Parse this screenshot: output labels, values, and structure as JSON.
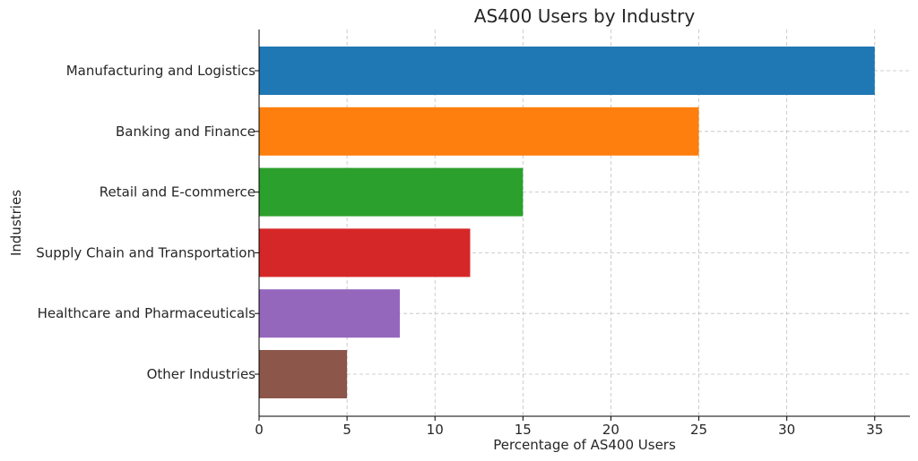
{
  "chart_data": {
    "type": "bar",
    "orientation": "horizontal",
    "title": "AS400 Users by Industry",
    "xlabel": "Percentage of AS400 Users",
    "ylabel": "Industries",
    "xlim": [
      0,
      37
    ],
    "xticks": [
      0,
      5,
      10,
      15,
      20,
      25,
      30,
      35
    ],
    "grid": true,
    "categories": [
      "Manufacturing and Logistics",
      "Banking and Finance",
      "Retail and E-commerce",
      "Supply Chain and Transportation",
      "Healthcare and Pharmaceuticals",
      "Other Industries"
    ],
    "values": [
      35,
      25,
      15,
      12,
      8,
      5
    ],
    "colors": [
      "#1f77b4",
      "#ff7f0e",
      "#2ca02c",
      "#d62728",
      "#9467bd",
      "#8c564b"
    ]
  }
}
